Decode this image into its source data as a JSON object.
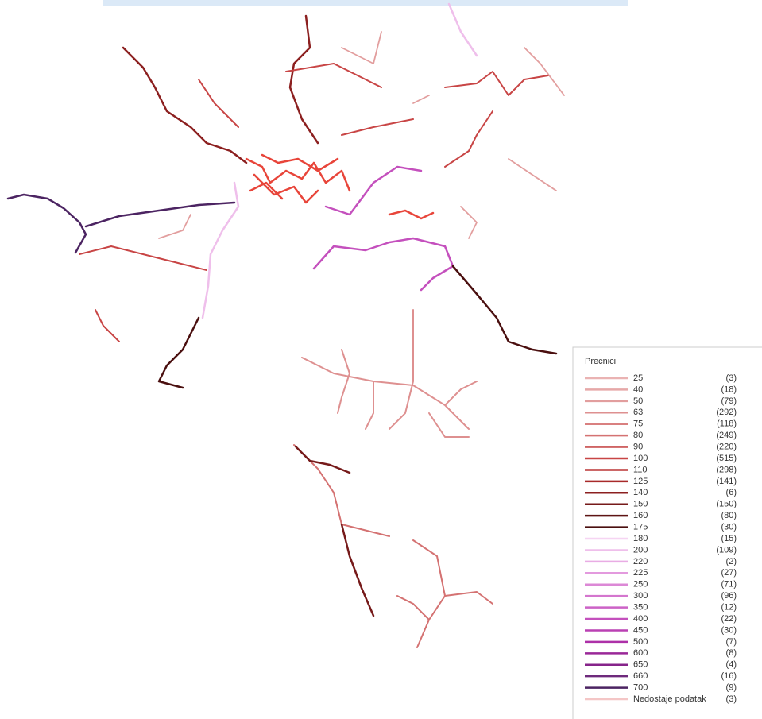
{
  "legend": {
    "title": "Precnici",
    "items": [
      {
        "label": "25",
        "count": "(3)",
        "color": "#eab3b3"
      },
      {
        "label": "40",
        "count": "(18)",
        "color": "#e6a8a8"
      },
      {
        "label": "50",
        "count": "(79)",
        "color": "#e29e9e"
      },
      {
        "label": "63",
        "count": "(292)",
        "color": "#de9090"
      },
      {
        "label": "75",
        "count": "(118)",
        "color": "#d98080"
      },
      {
        "label": "80",
        "count": "(249)",
        "color": "#d47272"
      },
      {
        "label": "90",
        "count": "(220)",
        "color": "#cf6464"
      },
      {
        "label": "100",
        "count": "(515)",
        "color": "#c84545"
      },
      {
        "label": "110",
        "count": "(298)",
        "color": "#bb3535"
      },
      {
        "label": "125",
        "count": "(141)",
        "color": "#a82a2a"
      },
      {
        "label": "140",
        "count": "(6)",
        "color": "#8c2020"
      },
      {
        "label": "150",
        "count": "(150)",
        "color": "#761a1a"
      },
      {
        "label": "160",
        "count": "(80)",
        "color": "#5e1414"
      },
      {
        "label": "175",
        "count": "(30)",
        "color": "#4a0f0f"
      },
      {
        "label": "180",
        "count": "(15)",
        "color": "#f6d4f2"
      },
      {
        "label": "200",
        "count": "(109)",
        "color": "#efbfeb"
      },
      {
        "label": "220",
        "count": "(2)",
        "color": "#e9ace4"
      },
      {
        "label": "225",
        "count": "(27)",
        "color": "#e39ade"
      },
      {
        "label": "250",
        "count": "(71)",
        "color": "#dc88d6"
      },
      {
        "label": "300",
        "count": "(96)",
        "color": "#d476ce"
      },
      {
        "label": "350",
        "count": "(12)",
        "color": "#cc62c6"
      },
      {
        "label": "400",
        "count": "(22)",
        "color": "#c450bd"
      },
      {
        "label": "450",
        "count": "(30)",
        "color": "#ba40b3"
      },
      {
        "label": "500",
        "count": "(7)",
        "color": "#ad30a8"
      },
      {
        "label": "600",
        "count": "(8)",
        "color": "#9a2898"
      },
      {
        "label": "650",
        "count": "(4)",
        "color": "#86248a"
      },
      {
        "label": "660",
        "count": "(16)",
        "color": "#6e2a7c"
      },
      {
        "label": "700",
        "count": "(9)",
        "color": "#4c2462"
      },
      {
        "label": "Nedostaje podatak",
        "count": "(3)",
        "color": "#f4c6c6"
      }
    ]
  }
}
